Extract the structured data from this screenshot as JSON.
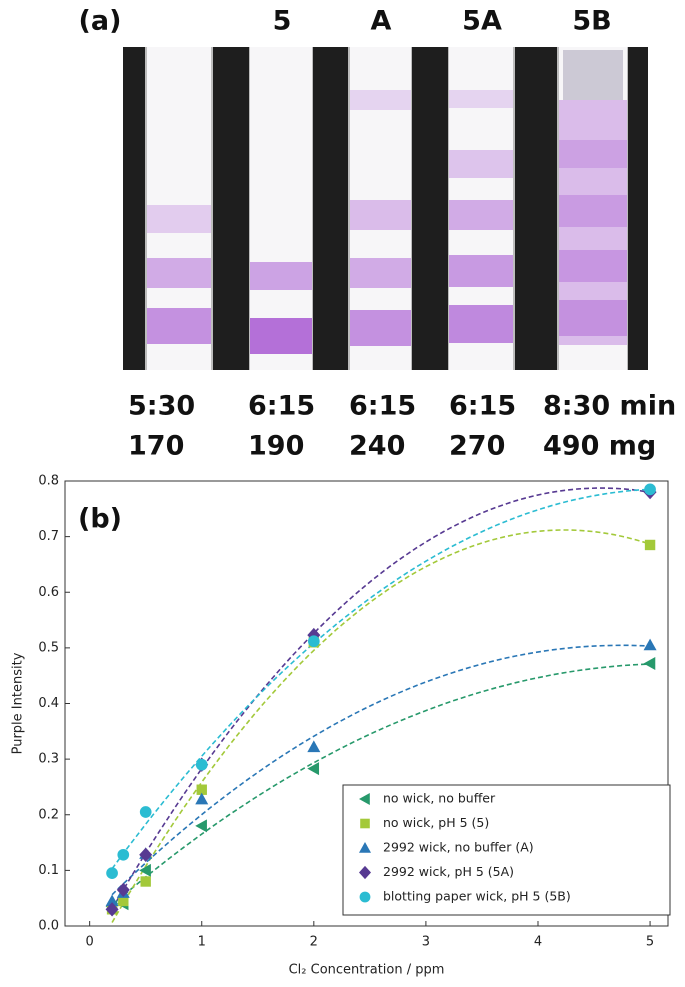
{
  "panel_a": {
    "label": "(a)",
    "strip_labels": [
      "5",
      "A",
      "5A",
      "5B"
    ],
    "times": [
      "5:30",
      "6:15",
      "6:15",
      "6:15",
      "8:30 min"
    ],
    "masses": [
      "170",
      "190",
      "240",
      "270",
      "490 mg"
    ]
  },
  "chart_data": {
    "type": "scatter",
    "panel_label": "(b)",
    "xlabel": "Cl₂ Concentration / ppm",
    "ylabel": "Purple Intensity",
    "x": [
      0.2,
      0.3,
      0.5,
      1,
      2,
      5
    ],
    "series": [
      {
        "name": "no wick, no buffer",
        "color": "#27996b",
        "marker": "triangle-left",
        "values": [
          0.035,
          0.04,
          0.1,
          0.18,
          0.283,
          0.472
        ]
      },
      {
        "name": "no wick, pH 5 (5)",
        "color": "#a3c93a",
        "marker": "square",
        "values": [
          0.03,
          0.045,
          0.08,
          0.245,
          0.51,
          0.685
        ]
      },
      {
        "name": "2992 wick, no buffer (A)",
        "color": "#2a77b6",
        "marker": "triangle-up",
        "values": [
          0.045,
          0.06,
          0.13,
          0.228,
          0.322,
          0.505
        ]
      },
      {
        "name": "2992 wick, pH 5 (5A)",
        "color": "#573a92",
        "marker": "diamond",
        "values": [
          0.03,
          0.065,
          0.128,
          0.29,
          0.523,
          0.78
        ]
      },
      {
        "name": "blotting paper wick, pH 5 (5B)",
        "color": "#2bbcd2",
        "marker": "circle",
        "values": [
          0.095,
          0.128,
          0.205,
          0.29,
          0.512,
          0.785
        ]
      }
    ],
    "xlim": [
      -0.22,
      5.16
    ],
    "xticks": [
      0,
      1,
      2,
      3,
      4,
      5
    ],
    "ylim": [
      0,
      0.8
    ],
    "yticks": [
      {
        "value": 0,
        "label": "0.0"
      },
      0.1,
      0.2,
      0.3,
      0.4,
      0.5,
      0.6,
      0.7,
      0.8
    ],
    "fit_lines": "dashed",
    "legend": "lower right"
  }
}
